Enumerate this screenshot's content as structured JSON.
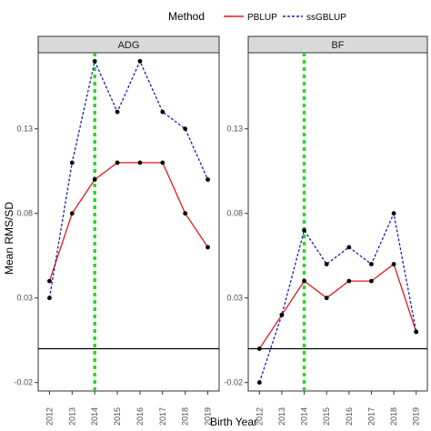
{
  "chart_data": {
    "type": "line",
    "xlabel": "Birth Year",
    "ylabel": "Mean RMS/SD",
    "x": [
      2012,
      2013,
      2014,
      2015,
      2016,
      2017,
      2018,
      2019
    ],
    "yticks": [
      -0.02,
      0.03,
      0.08,
      0.13
    ],
    "ylim": [
      -0.025,
      0.175
    ],
    "xlim": [
      2011.5,
      2019.5
    ],
    "vline_x": 2014,
    "hline_y": 0,
    "legend": {
      "title": "Method",
      "placement": "top",
      "entries": [
        {
          "label": "PBLUP",
          "color": "#e41a1c",
          "dash": "solid"
        },
        {
          "label": "ssGBLUP",
          "color": "#1f1fb4",
          "dash": "dotted"
        }
      ]
    },
    "panels": [
      {
        "title": "ADG",
        "series": [
          {
            "name": "PBLUP",
            "values": [
              0.04,
              0.08,
              0.1,
              0.11,
              0.11,
              0.11,
              0.08,
              0.06
            ]
          },
          {
            "name": "ssGBLUP",
            "values": [
              0.03,
              0.11,
              0.17,
              0.14,
              0.17,
              0.14,
              0.13,
              0.1
            ]
          }
        ]
      },
      {
        "title": "BF",
        "series": [
          {
            "name": "PBLUP",
            "values": [
              0.0,
              0.02,
              0.04,
              0.03,
              0.04,
              0.04,
              0.05,
              0.01
            ]
          },
          {
            "name": "ssGBLUP",
            "values": [
              -0.02,
              0.02,
              0.07,
              0.05,
              0.06,
              0.05,
              0.08,
              0.01
            ]
          }
        ]
      }
    ],
    "grid": false,
    "vline_color": "#22dd22",
    "point_color": "#000000"
  }
}
